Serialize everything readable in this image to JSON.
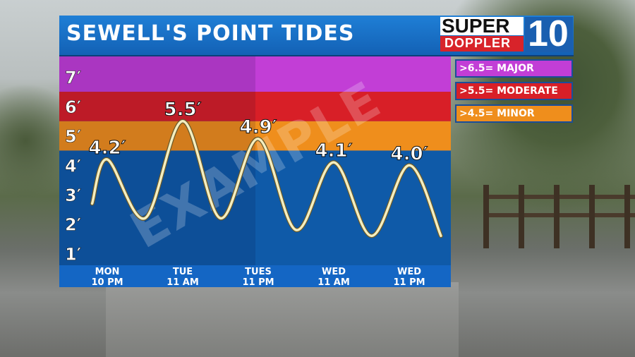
{
  "header": {
    "title": "SEWELL'S POINT TIDES"
  },
  "logo": {
    "super": "SUPER",
    "doppler": "DOPPLER",
    "channel": "10"
  },
  "watermark": "EXAMPLE",
  "legend": [
    {
      "label": ">6.5= MAJOR",
      "color": "#c23ed6"
    },
    {
      "label": ">5.5= MODERATE",
      "color": "#d81f27"
    },
    {
      "label": ">4.5= MINOR",
      "color": "#ef8e1c"
    }
  ],
  "colors": {
    "major": "#c23ed6",
    "moderate": "#d81f27",
    "minor": "#ef8e1c",
    "normal": "#0f5aa8",
    "curve": "#f4eec0",
    "title_bar": "#1a6fc8"
  },
  "chart_data": {
    "type": "line",
    "title": "SEWELL'S POINT TIDES",
    "y_tick_labels": [
      "1′",
      "2′",
      "3′",
      "4′",
      "5′",
      "6′",
      "7′"
    ],
    "y_ticks": [
      1,
      2,
      3,
      4,
      5,
      6,
      7
    ],
    "ylim": [
      0.6,
      7.7
    ],
    "thresholds": [
      {
        "name": "MINOR",
        "from": 4.5,
        "to": 5.5
      },
      {
        "name": "MODERATE",
        "from": 5.5,
        "to": 6.5
      },
      {
        "name": "MAJOR",
        "from": 6.5,
        "to": 7.7
      }
    ],
    "x_categories": [
      {
        "day": "MON",
        "time": "10 PM"
      },
      {
        "day": "TUE",
        "time": "11 AM"
      },
      {
        "day": "TUES",
        "time": "11 PM"
      },
      {
        "day": "WED",
        "time": "11 AM"
      },
      {
        "day": "WED",
        "time": "11 PM"
      }
    ],
    "high_tides": [
      {
        "x": 0,
        "value": 4.2,
        "label": "4.2′"
      },
      {
        "x": 1,
        "value": 5.5,
        "label": "5.5′"
      },
      {
        "x": 2,
        "value": 4.9,
        "label": "4.9′"
      },
      {
        "x": 3,
        "value": 4.1,
        "label": "4.1′"
      },
      {
        "x": 4,
        "value": 4.0,
        "label": "4.0′"
      }
    ],
    "curve_points": [
      [
        -0.2,
        2.7
      ],
      [
        0,
        4.2
      ],
      [
        0.5,
        2.2
      ],
      [
        1,
        5.5
      ],
      [
        1.5,
        2.2
      ],
      [
        2,
        4.9
      ],
      [
        2.5,
        1.8
      ],
      [
        3,
        4.1
      ],
      [
        3.5,
        1.6
      ],
      [
        4,
        4.0
      ],
      [
        4.42,
        1.6
      ]
    ]
  }
}
